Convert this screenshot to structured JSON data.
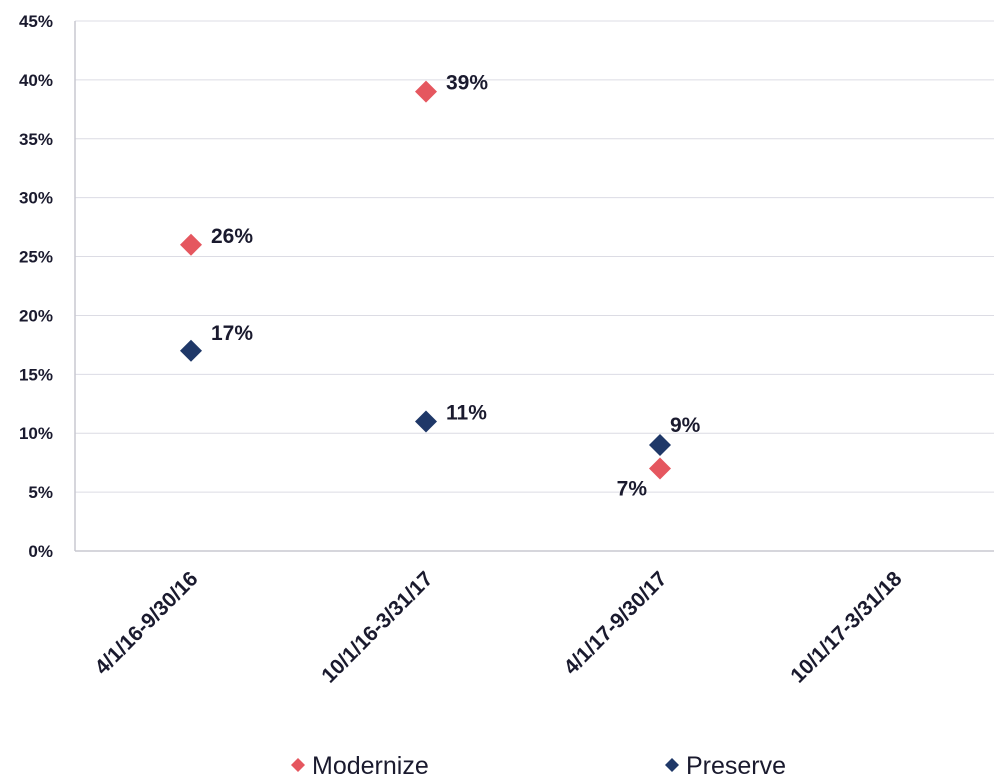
{
  "chart_data": {
    "type": "scatter",
    "categories": [
      "4/1/16-9/30/16",
      "10/1/16-3/31/17",
      "4/1/17-9/30/17",
      "10/1/17-3/31/18"
    ],
    "series": [
      {
        "name": "Modernize",
        "color": "#e5575f",
        "values": [
          26,
          39,
          7,
          null
        ],
        "labels": [
          "26%",
          "39%",
          "7%",
          null
        ]
      },
      {
        "name": "Preserve",
        "color": "#1f3868",
        "values": [
          17,
          11,
          9,
          null
        ],
        "labels": [
          "17%",
          "11%",
          "9%",
          null
        ]
      }
    ],
    "y_ticks": [
      "0%",
      "5%",
      "10%",
      "15%",
      "20%",
      "25%",
      "30%",
      "35%",
      "40%",
      "45%"
    ],
    "ylim": [
      0,
      45
    ],
    "ystep": 5,
    "grid": true,
    "legend_position": "bottom",
    "marker": "diamond"
  }
}
